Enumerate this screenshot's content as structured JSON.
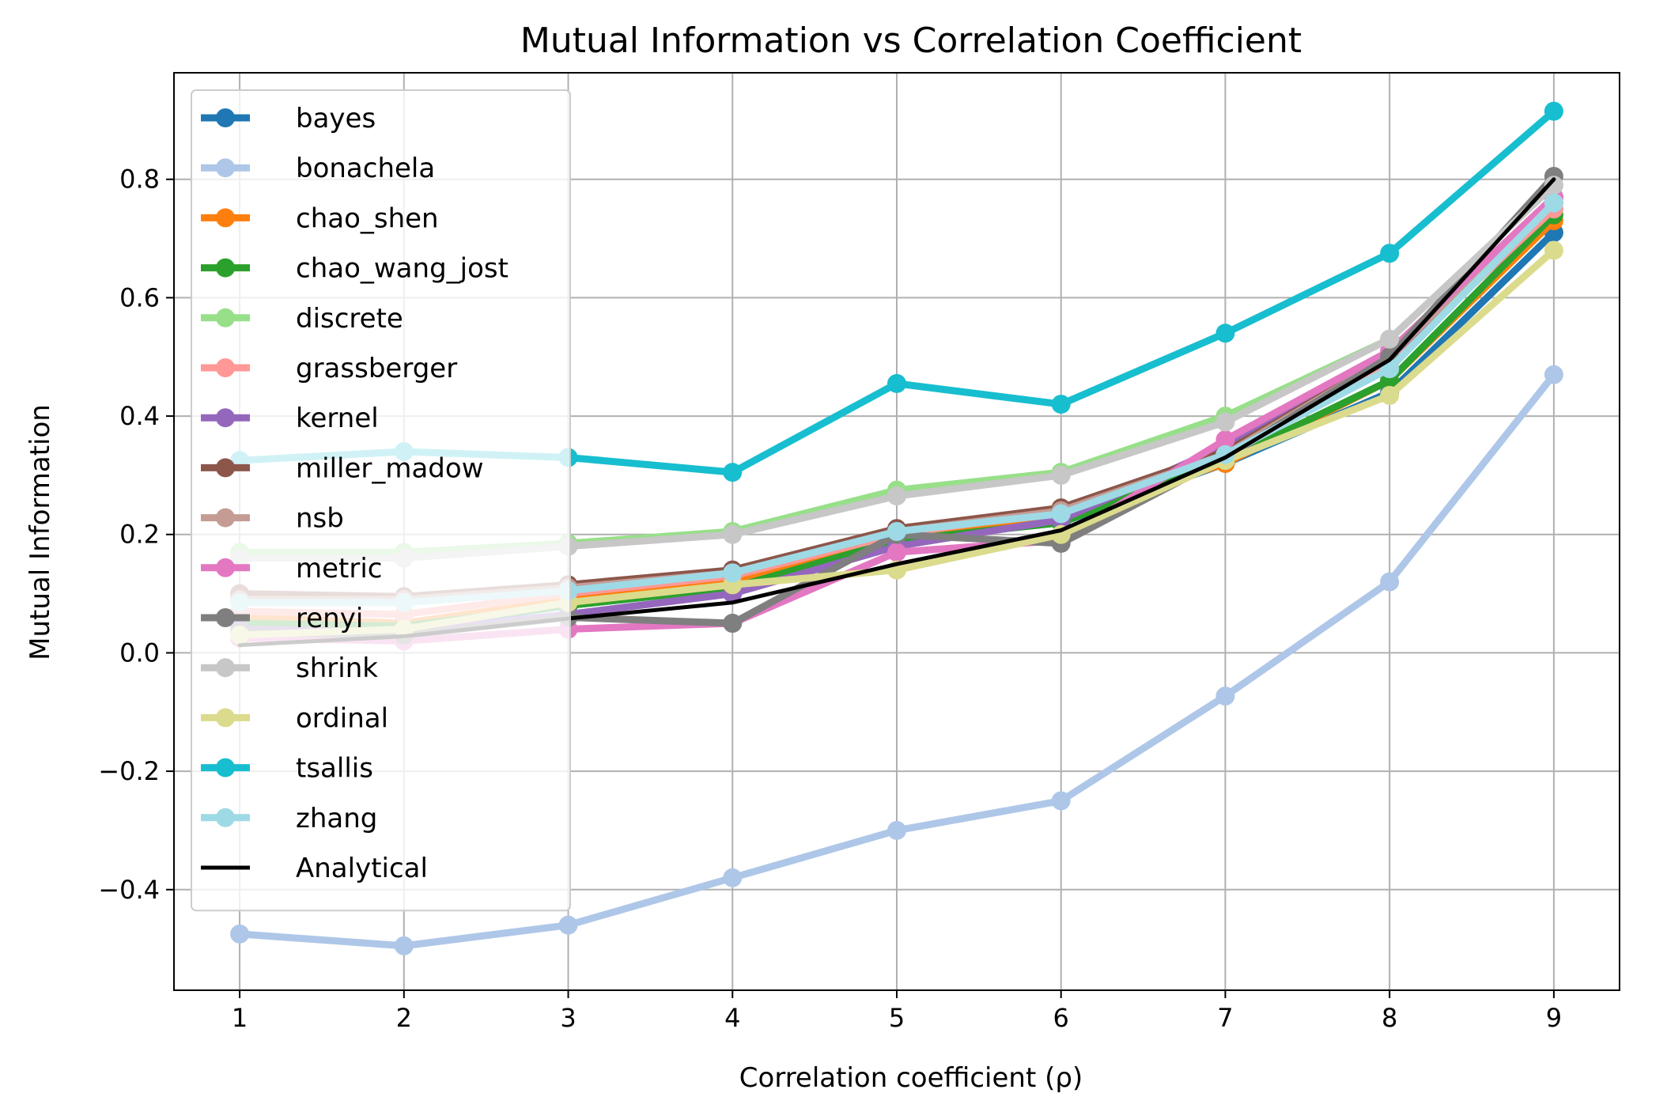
{
  "chart_data": {
    "type": "line",
    "title": "Mutual Information vs Correlation Coefficient",
    "xlabel": "Correlation coefficient (ρ)",
    "ylabel": "Mutual Information",
    "x": [
      1,
      2,
      3,
      4,
      5,
      6,
      7,
      8,
      9
    ],
    "x_ticks": [
      "1",
      "2",
      "3",
      "4",
      "5",
      "6",
      "7",
      "8",
      "9"
    ],
    "y_ticks": [
      {
        "value": -0.4,
        "label": "−0.4"
      },
      {
        "value": -0.2,
        "label": "−0.2"
      },
      {
        "value": 0.0,
        "label": "0.0"
      },
      {
        "value": 0.2,
        "label": "0.2"
      },
      {
        "value": 0.4,
        "label": "0.4"
      },
      {
        "value": 0.6,
        "label": "0.6"
      },
      {
        "value": 0.8,
        "label": "0.8"
      }
    ],
    "xlim": [
      0.6,
      9.4
    ],
    "ylim": [
      -0.57,
      0.98
    ],
    "grid": true,
    "legend_position": "upper-left",
    "series": [
      {
        "name": "bayes",
        "color": "#1f77b4",
        "marker": true,
        "values": [
          0.05,
          0.04,
          0.08,
          0.11,
          0.19,
          0.22,
          0.32,
          0.44,
          0.71
        ]
      },
      {
        "name": "bonachela",
        "color": "#aec7e8",
        "marker": true,
        "values": [
          -0.475,
          -0.495,
          -0.46,
          -0.38,
          -0.3,
          -0.25,
          -0.073,
          0.12,
          0.47
        ]
      },
      {
        "name": "chao_shen",
        "color": "#ff7f0e",
        "marker": true,
        "values": [
          0.06,
          0.05,
          0.09,
          0.12,
          0.2,
          0.23,
          0.32,
          0.46,
          0.73
        ]
      },
      {
        "name": "chao_wang_jost",
        "color": "#2ca02c",
        "marker": true,
        "values": [
          0.05,
          0.045,
          0.08,
          0.11,
          0.19,
          0.22,
          0.325,
          0.46,
          0.74
        ]
      },
      {
        "name": "discrete",
        "color": "#98df8a",
        "marker": true,
        "values": [
          0.17,
          0.17,
          0.185,
          0.205,
          0.275,
          0.305,
          0.4,
          0.53,
          0.79
        ]
      },
      {
        "name": "grassberger",
        "color": "#ff9896",
        "marker": true,
        "values": [
          0.07,
          0.065,
          0.1,
          0.13,
          0.2,
          0.24,
          0.34,
          0.49,
          0.75
        ]
      },
      {
        "name": "kernel",
        "color": "#9467bd",
        "marker": true,
        "values": [
          0.04,
          0.035,
          0.065,
          0.1,
          0.18,
          0.225,
          0.35,
          0.5,
          0.76
        ]
      },
      {
        "name": "miller_madow",
        "color": "#8c564b",
        "marker": true,
        "values": [
          0.1,
          0.095,
          0.115,
          0.14,
          0.21,
          0.245,
          0.34,
          0.5,
          0.77
        ]
      },
      {
        "name": "nsb",
        "color": "#c49c94",
        "marker": true,
        "values": [
          0.09,
          0.09,
          0.11,
          0.135,
          0.205,
          0.24,
          0.335,
          0.5,
          0.77
        ]
      },
      {
        "name": "metric",
        "color": "#e377c2",
        "marker": true,
        "values": [
          0.025,
          0.02,
          0.04,
          0.05,
          0.17,
          0.19,
          0.36,
          0.51,
          0.77
        ]
      },
      {
        "name": "renyi",
        "color": "#7f7f7f",
        "marker": true,
        "values": [
          0.035,
          0.03,
          0.06,
          0.05,
          0.2,
          0.185,
          0.33,
          0.5,
          0.805
        ]
      },
      {
        "name": "shrink",
        "color": "#c7c7c7",
        "marker": true,
        "values": [
          0.16,
          0.16,
          0.18,
          0.2,
          0.265,
          0.3,
          0.39,
          0.53,
          0.79
        ]
      },
      {
        "name": "ordinal",
        "color": "#dbdb8d",
        "marker": true,
        "values": [
          0.03,
          0.04,
          0.085,
          0.115,
          0.14,
          0.2,
          0.325,
          0.435,
          0.68
        ]
      },
      {
        "name": "tsallis",
        "color": "#17becf",
        "marker": true,
        "values": [
          0.325,
          0.34,
          0.33,
          0.305,
          0.455,
          0.42,
          0.54,
          0.675,
          0.915
        ]
      },
      {
        "name": "zhang",
        "color": "#9edae5",
        "marker": true,
        "values": [
          0.085,
          0.085,
          0.105,
          0.135,
          0.205,
          0.235,
          0.335,
          0.48,
          0.76
        ]
      },
      {
        "name": "Analytical",
        "color": "#000000",
        "marker": false,
        "values": [
          0.013,
          0.028,
          0.058,
          0.085,
          0.15,
          0.207,
          0.33,
          0.495,
          0.8
        ]
      }
    ]
  }
}
